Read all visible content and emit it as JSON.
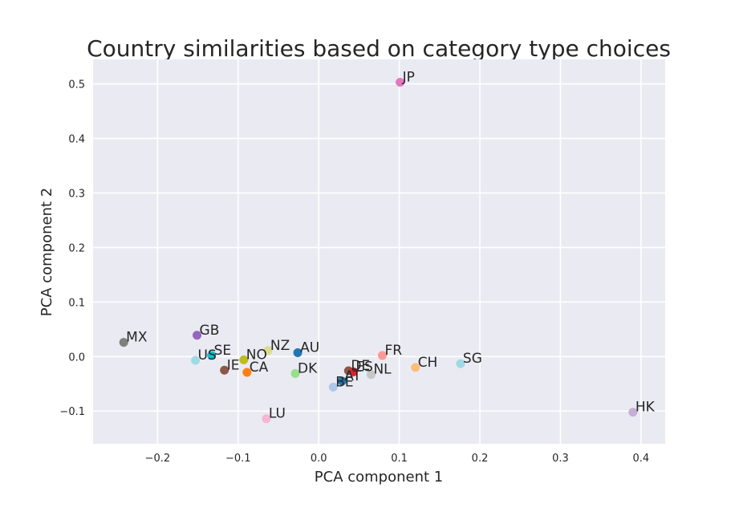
{
  "chart_data": {
    "type": "scatter",
    "title": "Country similarities based on category type choices",
    "xlabel": "PCA component 1",
    "ylabel": "PCA component 2",
    "xlim": [
      -0.28,
      0.43
    ],
    "ylim": [
      -0.16,
      0.545
    ],
    "xticks": [
      -0.2,
      -0.1,
      0.0,
      0.1,
      0.2,
      0.3,
      0.4
    ],
    "xtick_labels": [
      "−0.2",
      "−0.1",
      "0.0",
      "0.1",
      "0.2",
      "0.3",
      "0.4"
    ],
    "yticks": [
      -0.1,
      0.0,
      0.1,
      0.2,
      0.3,
      0.4,
      0.5
    ],
    "ytick_labels": [
      "−0.1",
      "0.0",
      "0.1",
      "0.2",
      "0.3",
      "0.4",
      "0.5"
    ],
    "grid": true,
    "colors": {
      "background": "#eaeaf2",
      "grid": "#ffffff"
    },
    "points": [
      {
        "label": "JP",
        "x": 0.101,
        "y": 0.503,
        "color": "#e377c2"
      },
      {
        "label": "MX",
        "x": -0.242,
        "y": 0.026,
        "color": "#7f7f7f"
      },
      {
        "label": "GB",
        "x": -0.151,
        "y": 0.039,
        "color": "#9467bd"
      },
      {
        "label": "US",
        "x": -0.153,
        "y": -0.007,
        "color": "#9edae5"
      },
      {
        "label": "SE",
        "x": -0.133,
        "y": 0.002,
        "color": "#17becf"
      },
      {
        "label": "IE",
        "x": -0.117,
        "y": -0.025,
        "color": "#8c564b"
      },
      {
        "label": "NO",
        "x": -0.093,
        "y": -0.006,
        "color": "#bcbd22"
      },
      {
        "label": "CA",
        "x": -0.089,
        "y": -0.029,
        "color": "#ff7f0e"
      },
      {
        "label": "NZ",
        "x": -0.063,
        "y": 0.011,
        "color": "#dbdb8d"
      },
      {
        "label": "AU",
        "x": -0.026,
        "y": 0.007,
        "color": "#1f77b4"
      },
      {
        "label": "DK",
        "x": -0.029,
        "y": -0.031,
        "color": "#98df8a"
      },
      {
        "label": "LU",
        "x": -0.065,
        "y": -0.114,
        "color": "#f7b6d2"
      },
      {
        "label": "BE",
        "x": 0.018,
        "y": -0.056,
        "color": "#aec7e8"
      },
      {
        "label": "AT",
        "x": 0.029,
        "y": -0.045,
        "color": "#1f77b4"
      },
      {
        "label": "DE",
        "x": 0.037,
        "y": -0.026,
        "color": "#8c564b"
      },
      {
        "label": "ES",
        "x": 0.043,
        "y": -0.028,
        "color": "#d62728"
      },
      {
        "label": "NL",
        "x": 0.065,
        "y": -0.033,
        "color": "#c7c7c7"
      },
      {
        "label": "FR",
        "x": 0.079,
        "y": 0.002,
        "color": "#ff9896"
      },
      {
        "label": "CH",
        "x": 0.12,
        "y": -0.02,
        "color": "#ffbb78"
      },
      {
        "label": "SG",
        "x": 0.176,
        "y": -0.013,
        "color": "#9edae5"
      },
      {
        "label": "HK",
        "x": 0.39,
        "y": -0.102,
        "color": "#c5b0d5"
      }
    ]
  }
}
